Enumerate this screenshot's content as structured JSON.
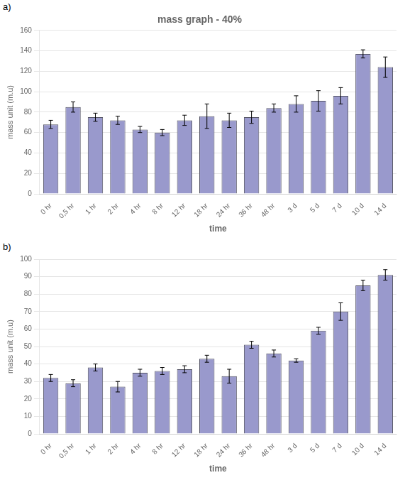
{
  "chart_data": [
    {
      "type": "bar",
      "annotations": [
        "a)"
      ],
      "title": "mass graph - 40%",
      "ylabel": "mass unit (m.u)",
      "xlabel": "time",
      "categories": [
        "0 hr",
        "0,5 hr",
        "1 hr",
        "2 hr",
        "4 hr",
        "8 hr",
        "12 hr",
        "18 hr",
        "24 hr",
        "36 hr",
        "48 hr",
        "3 d",
        "5 d",
        "7 d",
        "10 d",
        "14 d"
      ],
      "values": [
        68,
        85,
        75,
        72,
        63,
        60,
        72,
        76,
        72,
        75,
        84,
        88,
        91,
        96,
        137,
        124
      ],
      "errors": [
        4,
        5,
        4,
        4,
        3,
        3,
        5,
        12,
        7,
        6,
        4,
        8,
        10,
        8,
        4,
        10
      ],
      "color": "#9999cc",
      "ylim": [
        0,
        160
      ],
      "yticks": [
        0,
        20,
        40,
        60,
        80,
        100,
        120,
        140,
        160
      ],
      "grid": true
    },
    {
      "type": "bar",
      "annotations": [
        "b)"
      ],
      "ylabel": "mass unit (m.u)",
      "xlabel": "time",
      "categories": [
        "0 hr",
        "0,5 hr",
        "1 hr",
        "2 hr",
        "4 hr",
        "8 hr",
        "12 hr",
        "18 hr",
        "24 hr",
        "36 hr",
        "48 hr",
        "3 d",
        "5 d",
        "7 d",
        "10 d",
        "14 d"
      ],
      "values": [
        32,
        29,
        38,
        27,
        35,
        36,
        37,
        43,
        33,
        51,
        46,
        42,
        59,
        70,
        85,
        91
      ],
      "errors": [
        2,
        2,
        2,
        3,
        2,
        2,
        2,
        2,
        4,
        2,
        2,
        1,
        2,
        5,
        3,
        3
      ],
      "color": "#9999cc",
      "ylim": [
        0,
        100
      ],
      "yticks": [
        0,
        10,
        20,
        30,
        40,
        50,
        60,
        70,
        80,
        90,
        100
      ],
      "grid": true
    }
  ]
}
